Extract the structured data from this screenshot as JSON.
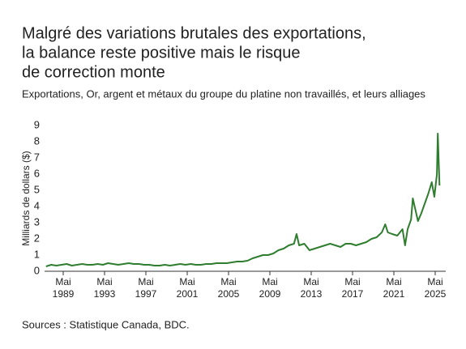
{
  "chart_data": {
    "type": "line",
    "title": [
      "Malgré des variations brutales des exportations,",
      "la balance reste positive mais le risque",
      "de correction monte"
    ],
    "subtitle": "Exportations, Or, argent et métaux du groupe du platine non travaillés, et leurs alliages",
    "ylabel": "Milliards de dollars ($)",
    "source": "Sources : Statistique Canada, BDC.",
    "x": [
      "1987-09",
      "1988-03",
      "1988-09",
      "1989-03",
      "1989-09",
      "1990-03",
      "1990-09",
      "1991-03",
      "1991-09",
      "1992-03",
      "1992-09",
      "1993-03",
      "1993-09",
      "1994-03",
      "1994-09",
      "1995-03",
      "1995-09",
      "1996-03",
      "1996-09",
      "1997-03",
      "1997-09",
      "1998-03",
      "1998-09",
      "1999-03",
      "1999-09",
      "2000-03",
      "2000-09",
      "2001-03",
      "2001-09",
      "2002-03",
      "2002-09",
      "2003-03",
      "2003-09",
      "2004-03",
      "2004-09",
      "2005-03",
      "2005-09",
      "2006-03",
      "2006-09",
      "2007-03",
      "2007-09",
      "2008-03",
      "2008-09",
      "2009-03",
      "2009-09",
      "2010-03",
      "2010-09",
      "2011-03",
      "2011-09",
      "2011-12",
      "2012-03",
      "2012-09",
      "2013-03",
      "2013-09",
      "2014-03",
      "2014-09",
      "2015-03",
      "2015-09",
      "2016-03",
      "2016-09",
      "2017-03",
      "2017-09",
      "2018-03",
      "2018-09",
      "2019-03",
      "2019-09",
      "2020-03",
      "2020-07",
      "2020-10",
      "2021-03",
      "2021-09",
      "2022-03",
      "2022-06",
      "2022-09",
      "2023-01",
      "2023-03",
      "2023-09",
      "2024-01",
      "2024-05",
      "2024-09",
      "2025-01",
      "2025-04",
      "2025-07",
      "2025-08",
      "2025-10"
    ],
    "values": [
      0.3,
      0.4,
      0.35,
      0.4,
      0.45,
      0.35,
      0.4,
      0.45,
      0.4,
      0.4,
      0.45,
      0.4,
      0.5,
      0.45,
      0.4,
      0.45,
      0.5,
      0.45,
      0.45,
      0.4,
      0.4,
      0.35,
      0.35,
      0.4,
      0.35,
      0.4,
      0.45,
      0.4,
      0.45,
      0.4,
      0.4,
      0.45,
      0.45,
      0.5,
      0.5,
      0.5,
      0.55,
      0.6,
      0.6,
      0.65,
      0.8,
      0.9,
      1.0,
      1.0,
      1.1,
      1.3,
      1.4,
      1.6,
      1.7,
      2.3,
      1.6,
      1.7,
      1.3,
      1.4,
      1.5,
      1.6,
      1.7,
      1.6,
      1.5,
      1.7,
      1.7,
      1.6,
      1.7,
      1.8,
      2.0,
      2.1,
      2.4,
      2.9,
      2.4,
      2.3,
      2.2,
      2.6,
      1.6,
      2.6,
      3.2,
      4.5,
      3.1,
      3.6,
      4.2,
      4.8,
      5.5,
      4.6,
      6.0,
      8.5,
      5.3
    ],
    "color": "#2f7d2f",
    "ylim": [
      0,
      9
    ],
    "yticks": [
      0,
      1,
      2,
      3,
      4,
      5,
      6,
      7,
      8,
      9
    ],
    "xticks": [
      {
        "value": "1989-05",
        "label": "Mai 1989"
      },
      {
        "value": "1993-05",
        "label": "Mai 1993"
      },
      {
        "value": "1997-05",
        "label": "Mai 1997"
      },
      {
        "value": "2001-05",
        "label": "Mai 2001"
      },
      {
        "value": "2005-05",
        "label": "Mai 2005"
      },
      {
        "value": "2009-05",
        "label": "Mai 2009"
      },
      {
        "value": "2013-05",
        "label": "Mai 2013"
      },
      {
        "value": "2017-05",
        "label": "Mai 2017"
      },
      {
        "value": "2021-05",
        "label": "Mai 2021"
      },
      {
        "value": "2025-05",
        "label": "Mai 2025"
      }
    ]
  }
}
